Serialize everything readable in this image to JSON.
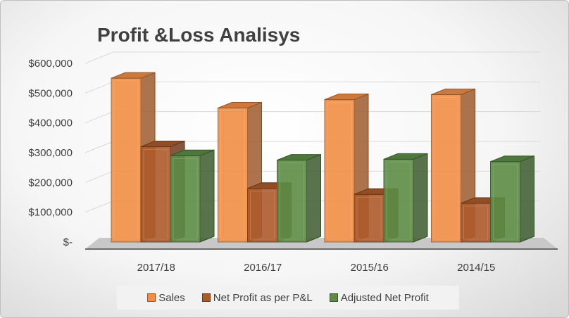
{
  "chart_data": {
    "type": "bar",
    "title": "Profit &Loss Analisys",
    "categories": [
      "2017/18",
      "2016/17",
      "2015/16",
      "2014/15"
    ],
    "series": [
      {
        "name": "Sales",
        "values": [
          550000,
          450000,
          478000,
          495000
        ],
        "color": "#f28e45"
      },
      {
        "name": "Net Profit as per P&L",
        "values": [
          320000,
          180000,
          160000,
          130000
        ],
        "color": "#ad5a2a"
      },
      {
        "name": "Adjusted Net Profit",
        "values": [
          290000,
          275000,
          278000,
          270000
        ],
        "color": "#5c8c45"
      }
    ],
    "yticks": [
      "$-",
      "$100,000",
      "$200,000",
      "$300,000",
      "$400,000",
      "$500,000",
      "$600,000"
    ],
    "ylim": [
      0,
      600000
    ],
    "grid": true,
    "legend_position": "bottom"
  }
}
